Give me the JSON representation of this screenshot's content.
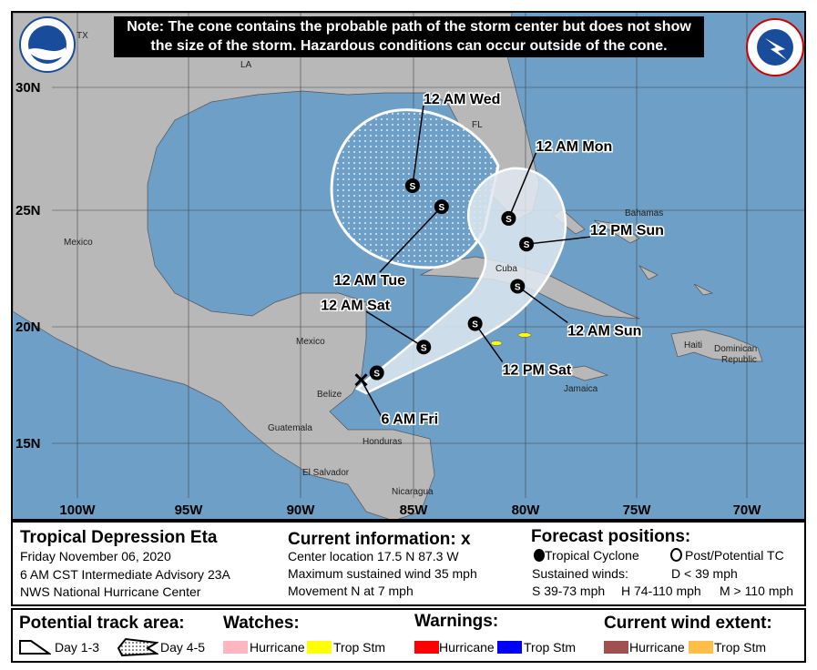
{
  "note": {
    "line1": "Note: The cone contains the probable path of the storm center but does not show",
    "line2": "the size of the storm. Hazardous conditions can occur outside of the cone."
  },
  "logos": {
    "left": "NOAA",
    "right": "NATIONAL WEATHER SERVICE"
  },
  "map": {
    "lat_ticks": [
      "30N",
      "25N",
      "20N",
      "15N"
    ],
    "lon_ticks": [
      "100W",
      "95W",
      "90W",
      "85W",
      "80W",
      "75W",
      "70W"
    ],
    "geo_labels": {
      "tx": "TX",
      "la": "LA",
      "fl": "FL",
      "mexico1": "Mexico",
      "mexico2": "Mexico",
      "bahamas": "Bahamas",
      "cuba": "Cuba",
      "belize": "Belize",
      "guatemala": "Guatemala",
      "honduras": "Honduras",
      "el_salvador": "El Salvador",
      "nicaragua": "Nicaragua",
      "jamaica": "Jamaica",
      "haiti": "Haiti",
      "dominican_republic_1": "Dominican",
      "dominican_republic_2": "Republic"
    },
    "current_position": {
      "lat": 17.5,
      "lon": -87.3,
      "label": "6 AM Fri"
    },
    "forecast_points": [
      {
        "lat": 17.8,
        "lon": -86.6,
        "type": "S",
        "label": ""
      },
      {
        "lat": 18.9,
        "lon": -84.5,
        "type": "S",
        "label": "12 AM Sat"
      },
      {
        "lat": 19.9,
        "lon": -82.2,
        "type": "S",
        "label": "12 PM Sat"
      },
      {
        "lat": 21.5,
        "lon": -80.3,
        "type": "S",
        "label": "12 AM Sun"
      },
      {
        "lat": 23.3,
        "lon": -79.9,
        "type": "S",
        "label": "12 PM Sun"
      },
      {
        "lat": 24.4,
        "lon": -80.7,
        "type": "S",
        "label": "12 AM Mon"
      },
      {
        "lat": 24.9,
        "lon": -83.7,
        "type": "S",
        "label": "12 AM Tue"
      },
      {
        "lat": 25.8,
        "lon": -85.0,
        "type": "S",
        "label": "12 AM Wed"
      }
    ],
    "colors": {
      "water": "#6d9fc7",
      "land": "#b8b8b8",
      "cone": "#dfe7f0",
      "ts_wind": "#ffff00"
    }
  },
  "info": {
    "storm_name": "Tropical Depression Eta",
    "date": "Friday November 06, 2020",
    "advisory": "6 AM CST Intermediate Advisory 23A",
    "center": "NWS National Hurricane Center",
    "current_title": "Current information: ",
    "current_symbol": "x",
    "location": "Center location 17.5 N 87.3 W",
    "wind": "Maximum sustained wind 35 mph",
    "movement": "Movement N at 7 mph",
    "forecast_title": "Forecast positions:",
    "tc": "Tropical Cyclone",
    "ptc": "Post/Potential TC",
    "sustained": "Sustained winds:",
    "d": "D < 39 mph",
    "s": "S 39-73 mph",
    "hcat": "H 74-110 mph",
    "m": "M > 110 mph"
  },
  "legend": {
    "track_title": "Potential track area:",
    "day13": "Day 1-3",
    "day45": "Day 4-5",
    "watches_title": "Watches:",
    "warnings_title": "Warnings:",
    "wind_title": "Current wind extent:",
    "hurricane": "Hurricane",
    "trop_stm": "Trop Stm",
    "colors": {
      "hurricane_watch": "#ffb6c1",
      "ts_watch": "#ffff00",
      "hurricane_warning": "#ff0000",
      "ts_warning": "#0000ff",
      "hurricane_wind": "#a0504e",
      "ts_wind": "#ffbf47"
    }
  }
}
